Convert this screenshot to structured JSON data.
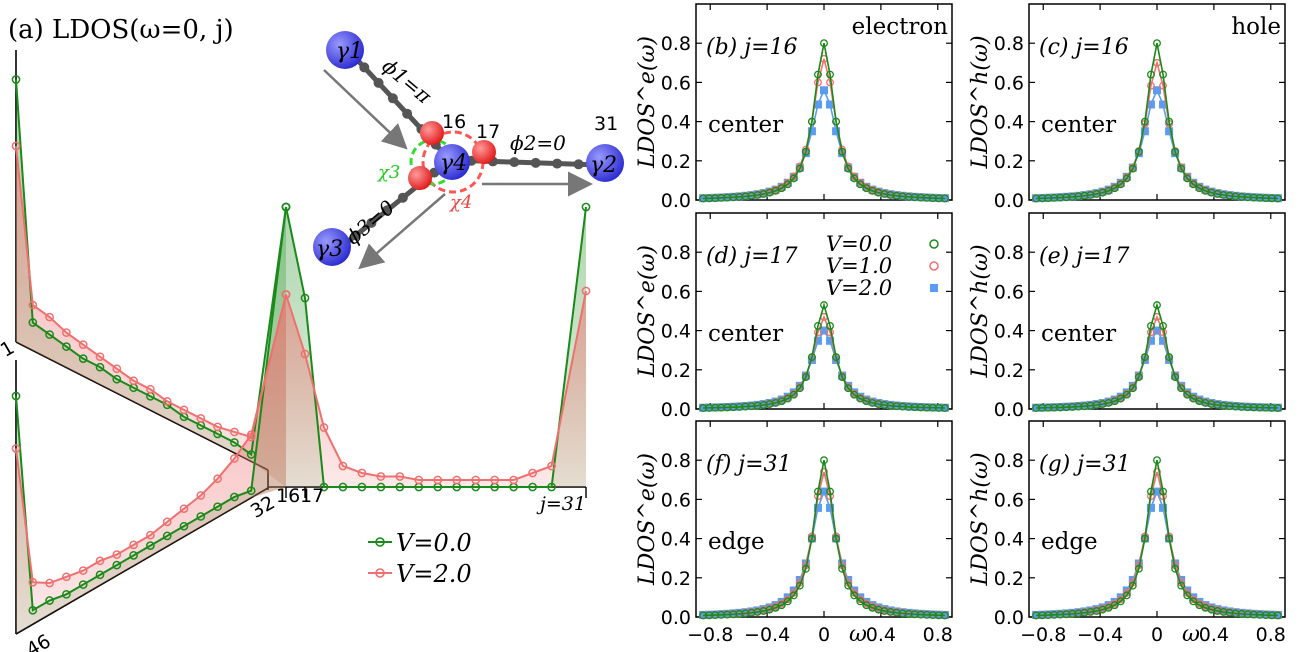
{
  "colors": {
    "v0": "#1a8a1a",
    "v1": "#f07070",
    "v2": "#5a9cf0",
    "chain": "#555555",
    "majorana": "#3b3bd6",
    "site": "#ee2222"
  },
  "panel_a": {
    "title": "(a) LDOS(ω=0, j)",
    "label_1": "1",
    "label_32": "32",
    "label_46": "46",
    "label_16": "16",
    "label_17": "17",
    "label_j31": "j=31",
    "legend_v0": "V=0.0",
    "legend_v2": "V=2.0",
    "inset": {
      "gamma1": "γ1",
      "gamma2": "γ2",
      "gamma3": "γ3",
      "gamma4": "γ4",
      "phi1": "ϕ1=π",
      "phi2": "ϕ2=0",
      "phi3": "ϕ3=0",
      "chi3": "χ3",
      "chi4": "χ4",
      "site16": "16",
      "site17": "17",
      "site31": "31"
    }
  },
  "chart_data": [
    {
      "type": "line",
      "panel": "a",
      "title": "(a) LDOS(ω=0, j)",
      "series": [
        {
          "name": "V=0.0",
          "branch_top_j1_to_15": [
            0.75,
            0.08,
            0.07,
            0.06,
            0.05,
            0.05,
            0.04,
            0.04,
            0.04,
            0.04,
            0.03,
            0.03,
            0.03,
            0.03,
            0.02
          ],
          "branch_bottom_j46_to_32": [
            0.68,
            0.04,
            0.04,
            0.03,
            0.03,
            0.03,
            0.03,
            0.03,
            0.03,
            0.03,
            0.03,
            0.03,
            0.03,
            0.03,
            0.02
          ],
          "center_j16_to_31": [
            0.8,
            0.54,
            0.0,
            0.0,
            0.0,
            0.0,
            0.0,
            0.0,
            0.0,
            0.0,
            0.0,
            0.0,
            0.0,
            0.0,
            0.0,
            0.8
          ]
        },
        {
          "name": "V=2.0",
          "branch_top_j1_to_15": [
            0.56,
            0.13,
            0.12,
            0.1,
            0.09,
            0.08,
            0.07,
            0.06,
            0.06,
            0.05,
            0.05,
            0.05,
            0.05,
            0.06,
            0.07
          ],
          "branch_bottom_j46_to_32": [
            0.53,
            0.12,
            0.09,
            0.08,
            0.07,
            0.07,
            0.06,
            0.06,
            0.06,
            0.07,
            0.08,
            0.09,
            0.11,
            0.14,
            0.18
          ],
          "center_j16_to_31": [
            0.55,
            0.38,
            0.17,
            0.06,
            0.04,
            0.03,
            0.03,
            0.02,
            0.02,
            0.02,
            0.02,
            0.02,
            0.02,
            0.04,
            0.06,
            0.56
          ]
        }
      ]
    },
    {
      "type": "line",
      "panels": [
        {
          "id": "b",
          "label": "(b) j=16",
          "tag": "center",
          "corner": "electron",
          "ylabel": "LDOS^e(ω)",
          "peaks": [
            0.8,
            0.72,
            0.56
          ]
        },
        {
          "id": "c",
          "label": "(c) j=16",
          "tag": "center",
          "corner": "hole",
          "ylabel": "LDOS^h(ω)",
          "peaks": [
            0.8,
            0.7,
            0.56
          ]
        },
        {
          "id": "d",
          "label": "(d) j=17",
          "tag": "center",
          "corner": "",
          "ylabel": "LDOS^e(ω)",
          "peaks": [
            0.53,
            0.47,
            0.4
          ]
        },
        {
          "id": "e",
          "label": "(e) j=17",
          "tag": "center",
          "corner": "",
          "ylabel": "LDOS^h(ω)",
          "peaks": [
            0.53,
            0.47,
            0.4
          ]
        },
        {
          "id": "f",
          "label": "(f) j=31",
          "tag": "edge",
          "corner": "",
          "ylabel": "LDOS^e(ω)",
          "peaks": [
            0.8,
            0.74,
            0.64
          ]
        },
        {
          "id": "g",
          "label": "(g) j=31",
          "tag": "edge",
          "corner": "",
          "ylabel": "LDOS^h(ω)",
          "peaks": [
            0.8,
            0.74,
            0.64
          ]
        }
      ],
      "series_names": [
        "V=0.0",
        "V=1.0",
        "V=2.0"
      ],
      "xlabel": "ω",
      "xlim": [
        -0.9,
        0.9
      ],
      "ylim": [
        0.0,
        1.0
      ],
      "xticks": [
        "−0.8",
        "−0.4",
        "0",
        "0.4",
        "0.8"
      ],
      "yticks": [
        "0.0",
        "0.2",
        "0.4",
        "0.6",
        "0.8"
      ],
      "lorentz_width": [
        0.085,
        0.095,
        0.11
      ]
    }
  ]
}
